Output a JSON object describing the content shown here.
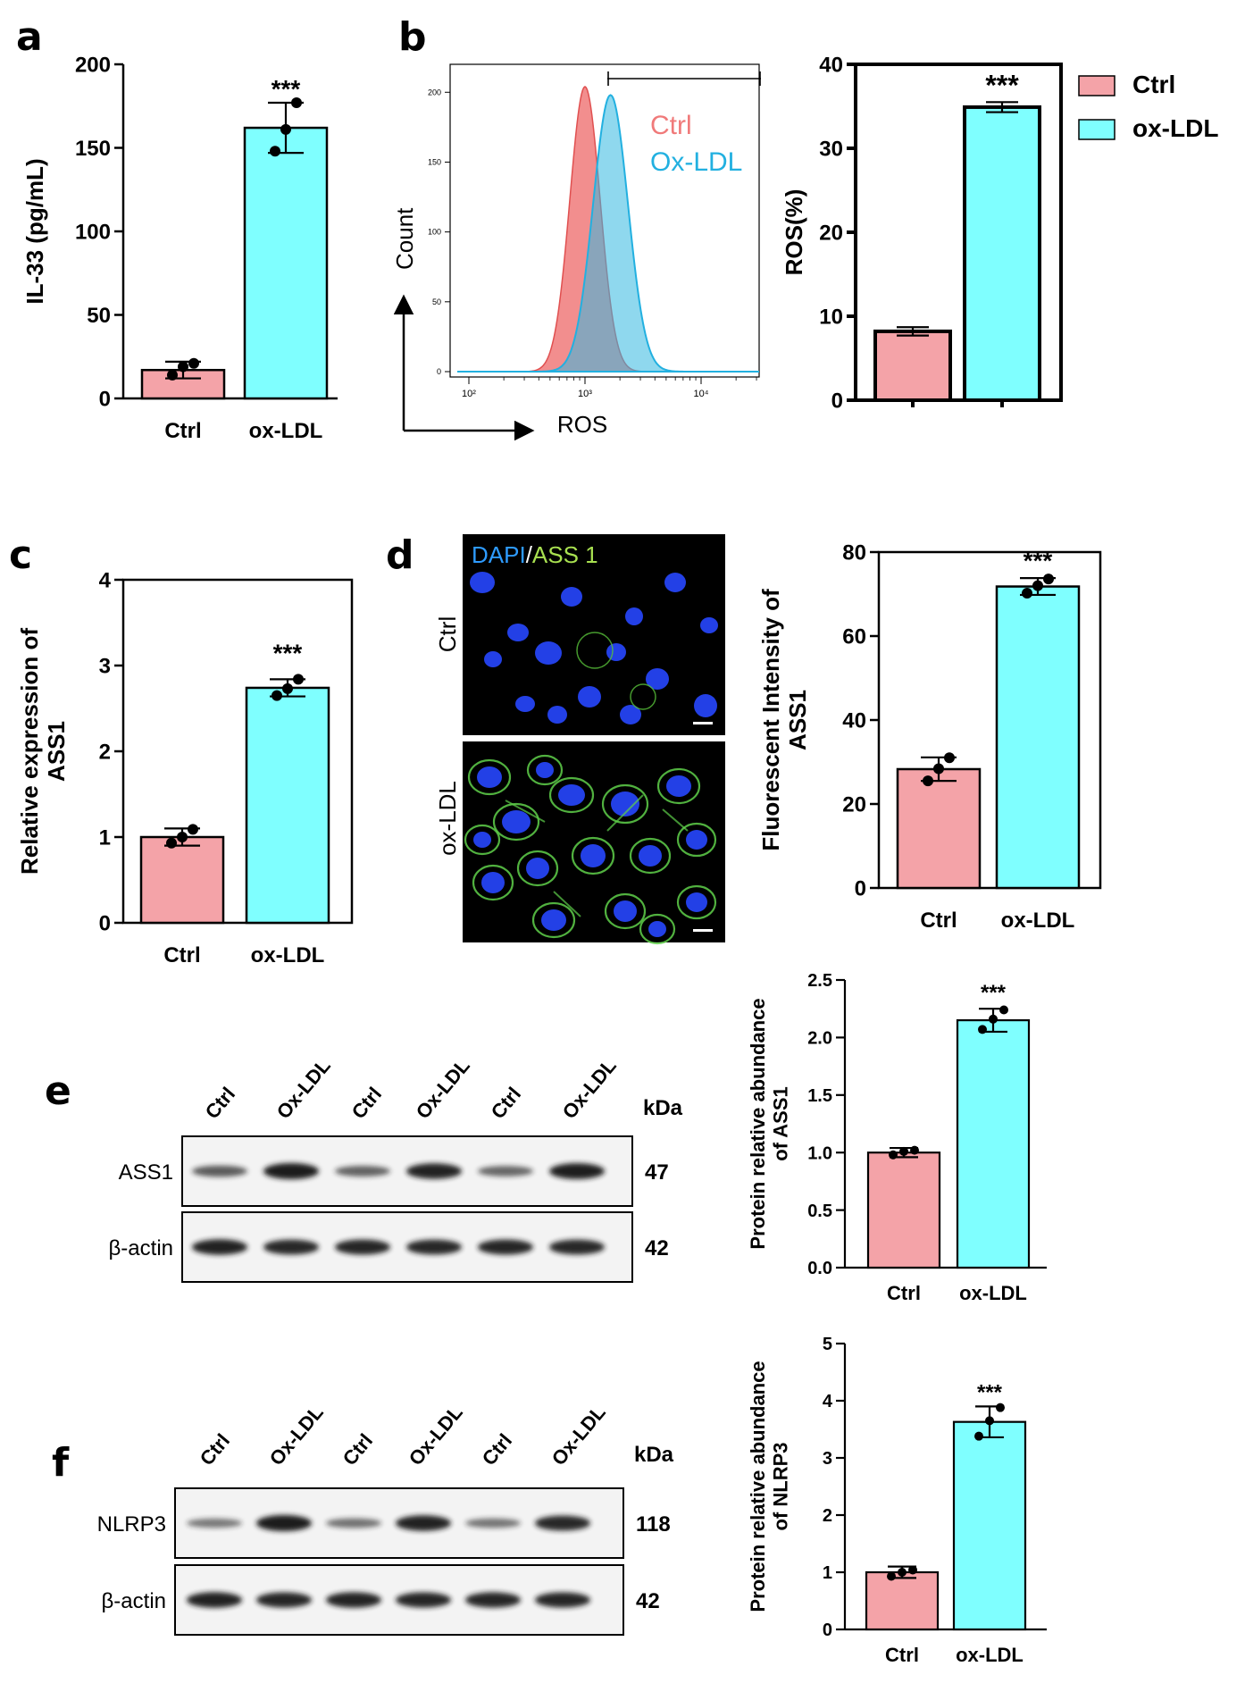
{
  "panels": {
    "a": "a",
    "b": "b",
    "c": "c",
    "d": "d",
    "e": "e",
    "f": "f"
  },
  "colors": {
    "ctrl": "#F4A3A8",
    "oxldl": "#7FFFFF",
    "hist_ctrl": "#F07A7A",
    "hist_ox": "#33B8E0",
    "dapi": "#2E7BFF",
    "ass1": "#8FD14F"
  },
  "significance": "***",
  "chart_data": [
    {
      "id": "a",
      "type": "bar",
      "categories": [
        "Ctrl",
        "ox-LDL"
      ],
      "values": [
        17,
        162
      ],
      "errors": [
        5,
        15
      ],
      "points": [
        [
          14,
          19,
          21
        ],
        [
          148,
          161,
          177
        ]
      ],
      "ylabel": "IL-33 (pg/mL)",
      "xlabel": "",
      "ylim": [
        0,
        200
      ],
      "yticks": [
        "0",
        "50",
        "100",
        "150",
        "200"
      ],
      "annotation": "***",
      "grid": false
    },
    {
      "id": "b-hist",
      "type": "area",
      "series": [
        {
          "name": "Ctrl"
        },
        {
          "name": "Ox-LDL"
        }
      ],
      "xlabel": "ROS",
      "ylabel": "Count",
      "xticks": [
        "10²",
        "10³",
        "10⁴"
      ],
      "yticks": [
        "0",
        "50",
        "100",
        "150",
        "200"
      ],
      "ylim": [
        0,
        220
      ],
      "legend": "top-right"
    },
    {
      "id": "b-bar",
      "type": "bar",
      "categories": [
        "Ctrl",
        "ox-LDL"
      ],
      "values": [
        8.2,
        34.9
      ],
      "errors": [
        0.5,
        0.6
      ],
      "ylabel": "ROS(%)",
      "ylim": [
        0,
        40
      ],
      "yticks": [
        "0",
        "10",
        "20",
        "30",
        "40"
      ],
      "annotation": "***",
      "legend": "right",
      "legend_entries": [
        "Ctrl",
        "ox-LDL"
      ]
    },
    {
      "id": "c",
      "type": "bar",
      "categories": [
        "Ctrl",
        "ox-LDL"
      ],
      "values": [
        1.0,
        2.74
      ],
      "errors": [
        0.1,
        0.1
      ],
      "points": [
        [
          0.93,
          1.0,
          1.09
        ],
        [
          2.65,
          2.73,
          2.84
        ]
      ],
      "ylabel": "Relative expression of ASS1",
      "ylim": [
        0,
        4
      ],
      "yticks": [
        "0",
        "1",
        "2",
        "3",
        "4"
      ],
      "annotation": "***"
    },
    {
      "id": "d",
      "type": "bar",
      "categories": [
        "Ctrl",
        "ox-LDL"
      ],
      "values": [
        28.3,
        71.8
      ],
      "errors": [
        2.8,
        2.0
      ],
      "points": [
        [
          25.5,
          28.4,
          31.0
        ],
        [
          70.2,
          72.0,
          73.6
        ]
      ],
      "ylabel": "Fluorescent Intensity of ASS1",
      "ylim": [
        0,
        80
      ],
      "yticks": [
        "0",
        "20",
        "40",
        "60",
        "80"
      ],
      "annotation": "***"
    },
    {
      "id": "e",
      "type": "bar",
      "categories": [
        "Ctrl",
        "ox-LDL"
      ],
      "values": [
        1.0,
        2.15
      ],
      "errors": [
        0.04,
        0.1
      ],
      "points": [
        [
          0.98,
          1.01,
          1.02
        ],
        [
          2.07,
          2.16,
          2.24
        ]
      ],
      "ylabel": "Protein relative abundance of ASS1",
      "ylim": [
        0,
        2.5
      ],
      "yticks": [
        "0.0",
        "0.5",
        "1.0",
        "1.5",
        "2.0",
        "2.5"
      ],
      "annotation": "***"
    },
    {
      "id": "f",
      "type": "bar",
      "categories": [
        "Ctrl",
        "ox-LDL"
      ],
      "values": [
        1.0,
        3.63
      ],
      "errors": [
        0.1,
        0.27
      ],
      "points": [
        [
          0.93,
          1.0,
          1.04
        ],
        [
          3.38,
          3.65,
          3.88
        ]
      ],
      "ylabel": "Protein relative abundance of NLRP3",
      "ylim": [
        0,
        5
      ],
      "yticks": [
        "0",
        "1",
        "2",
        "3",
        "4",
        "5"
      ],
      "annotation": "***"
    }
  ],
  "histogram": {
    "legend_ctrl": "Ctrl",
    "legend_ox": "Ox-LDL"
  },
  "micrograph": {
    "header_dapi": "DAPI",
    "header_sep": "/",
    "header_ass1": "ASS 1",
    "row_ctrl": "Ctrl",
    "row_ox": "ox-LDL"
  },
  "blot_e": {
    "lanes": [
      "Ctrl",
      "Ox-LDL",
      "Ctrl",
      "Ox-LDL",
      "Ctrl",
      "Ox-LDL"
    ],
    "unit": "kDa",
    "rows": [
      {
        "label": "ASS1",
        "kda": "47",
        "intensities": [
          0.55,
          1.0,
          0.5,
          0.95,
          0.48,
          0.98
        ]
      },
      {
        "label": "β-actin",
        "kda": "42",
        "intensities": [
          0.95,
          0.9,
          0.92,
          0.9,
          0.92,
          0.9
        ]
      }
    ]
  },
  "blot_f": {
    "lanes": [
      "Ctrl",
      "Ox-LDL",
      "Ctrl",
      "Ox-LDL",
      "Ctrl",
      "Ox-LDL"
    ],
    "unit": "kDa",
    "rows": [
      {
        "label": "NLRP3",
        "kda": "118",
        "intensities": [
          0.35,
          1.0,
          0.4,
          0.95,
          0.38,
          0.9
        ]
      },
      {
        "label": "β-actin",
        "kda": "42",
        "intensities": [
          0.95,
          0.92,
          0.94,
          0.92,
          0.93,
          0.92
        ]
      }
    ]
  }
}
